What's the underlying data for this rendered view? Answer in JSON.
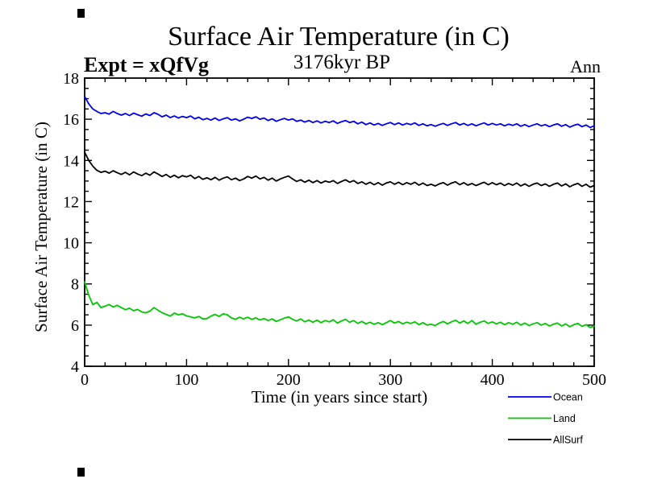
{
  "header": {
    "title": "Surface Air Temperature (in C)",
    "subtitle": "3176kyr BP",
    "experiment_label": "Expt = xQfVg",
    "period_label": "Ann"
  },
  "chart_data": {
    "type": "line",
    "title": "Surface Air Temperature (in C)",
    "subtitle": "3176kyr BP",
    "xlabel": "Time (in years since start)",
    "ylabel": "Surface Air Temperature (in C)",
    "xlim": [
      0,
      500
    ],
    "ylim": [
      4,
      18
    ],
    "grid": false,
    "legend_position": "below-right",
    "x_major_ticks": [
      0,
      100,
      200,
      300,
      400,
      500
    ],
    "x_tick_labels": [
      "0",
      "100",
      "200",
      "300",
      "400",
      "500"
    ],
    "x_minor_step": 20,
    "y_major_ticks": [
      4,
      6,
      8,
      10,
      12,
      14,
      16,
      18
    ],
    "y_tick_labels": [
      "4",
      "6",
      "8",
      "10",
      "12",
      "14",
      "16",
      "18"
    ],
    "y_minor_step": 0.5,
    "frame_color": "#000000",
    "x": {
      "start": 0,
      "step": 4
    },
    "series": [
      {
        "name": "Ocean",
        "color": "#0000ee",
        "values": [
          17.1,
          16.75,
          16.5,
          16.38,
          16.28,
          16.32,
          16.25,
          16.38,
          16.28,
          16.2,
          16.28,
          16.18,
          16.3,
          16.22,
          16.15,
          16.26,
          16.18,
          16.32,
          16.24,
          16.12,
          16.2,
          16.08,
          16.16,
          16.06,
          16.14,
          16.08,
          16.16,
          16.02,
          16.1,
          15.98,
          16.04,
          15.96,
          16.06,
          15.94,
          16.02,
          16.08,
          15.96,
          16.02,
          15.92,
          16.0,
          16.1,
          16.04,
          16.12,
          16.0,
          16.06,
          15.94,
          16.02,
          15.9,
          15.98,
          16.04,
          15.96,
          16.02,
          15.9,
          15.96,
          15.86,
          15.94,
          15.84,
          15.92,
          15.82,
          15.9,
          15.84,
          15.92,
          15.8,
          15.88,
          15.94,
          15.84,
          15.9,
          15.78,
          15.86,
          15.74,
          15.82,
          15.72,
          15.8,
          15.7,
          15.78,
          15.84,
          15.74,
          15.82,
          15.72,
          15.8,
          15.74,
          15.82,
          15.7,
          15.78,
          15.68,
          15.74,
          15.66,
          15.74,
          15.8,
          15.7,
          15.78,
          15.84,
          15.72,
          15.8,
          15.7,
          15.78,
          15.68,
          15.76,
          15.82,
          15.72,
          15.8,
          15.72,
          15.78,
          15.68,
          15.76,
          15.7,
          15.78,
          15.66,
          15.74,
          15.64,
          15.72,
          15.78,
          15.68,
          15.74,
          15.64,
          15.72,
          15.78,
          15.66,
          15.74,
          15.62,
          15.7,
          15.76,
          15.64,
          15.72,
          15.6,
          15.68
        ]
      },
      {
        "name": "Land",
        "color": "#00c800",
        "values": [
          8.1,
          7.45,
          7.0,
          7.1,
          6.85,
          6.92,
          7.0,
          6.88,
          6.96,
          6.85,
          6.75,
          6.82,
          6.7,
          6.76,
          6.64,
          6.6,
          6.68,
          6.85,
          6.72,
          6.6,
          6.52,
          6.44,
          6.58,
          6.5,
          6.55,
          6.45,
          6.4,
          6.35,
          6.42,
          6.3,
          6.32,
          6.44,
          6.52,
          6.42,
          6.55,
          6.5,
          6.35,
          6.28,
          6.38,
          6.3,
          6.38,
          6.28,
          6.35,
          6.25,
          6.32,
          6.22,
          6.3,
          6.18,
          6.26,
          6.34,
          6.4,
          6.28,
          6.2,
          6.3,
          6.16,
          6.25,
          6.14,
          6.24,
          6.12,
          6.22,
          6.16,
          6.26,
          6.1,
          6.2,
          6.28,
          6.14,
          6.22,
          6.08,
          6.18,
          6.06,
          6.14,
          6.04,
          6.12,
          6.02,
          6.12,
          6.22,
          6.1,
          6.18,
          6.06,
          6.14,
          6.08,
          6.16,
          6.02,
          6.12,
          6.0,
          6.04,
          5.98,
          6.1,
          6.18,
          6.06,
          6.16,
          6.24,
          6.1,
          6.2,
          6.08,
          6.22,
          6.04,
          6.14,
          6.2,
          6.08,
          6.16,
          6.06,
          6.14,
          6.02,
          6.12,
          6.04,
          6.14,
          6.0,
          6.1,
          5.98,
          6.06,
          6.12,
          6.0,
          6.08,
          5.96,
          6.04,
          6.1,
          5.96,
          6.06,
          5.92,
          6.02,
          6.08,
          5.94,
          6.02,
          5.88,
          5.95
        ]
      },
      {
        "name": "AllSurf",
        "color": "#000000",
        "values": [
          14.4,
          14.0,
          13.72,
          13.52,
          13.42,
          13.48,
          13.38,
          13.5,
          13.4,
          13.32,
          13.42,
          13.3,
          13.44,
          13.34,
          13.26,
          13.38,
          13.28,
          13.44,
          13.34,
          13.22,
          13.32,
          13.18,
          13.28,
          13.16,
          13.26,
          13.2,
          13.28,
          13.12,
          13.22,
          13.08,
          13.16,
          13.06,
          13.18,
          13.04,
          13.14,
          13.2,
          13.06,
          13.14,
          13.02,
          13.1,
          13.22,
          13.14,
          13.24,
          13.1,
          13.18,
          13.04,
          13.14,
          13.0,
          13.1,
          13.18,
          13.24,
          13.1,
          12.98,
          13.06,
          12.94,
          13.04,
          12.92,
          13.02,
          12.9,
          13.0,
          12.94,
          13.02,
          12.88,
          12.98,
          13.06,
          12.94,
          13.02,
          12.88,
          12.96,
          12.84,
          12.94,
          12.82,
          12.92,
          12.8,
          12.9,
          12.96,
          12.84,
          12.94,
          12.82,
          12.92,
          12.84,
          12.94,
          12.8,
          12.9,
          12.78,
          12.84,
          12.76,
          12.86,
          12.92,
          12.8,
          12.9,
          12.96,
          12.82,
          12.92,
          12.8,
          12.88,
          12.78,
          12.86,
          12.94,
          12.82,
          12.92,
          12.82,
          12.9,
          12.78,
          12.88,
          12.8,
          12.9,
          12.76,
          12.86,
          12.74,
          12.84,
          12.9,
          12.78,
          12.86,
          12.74,
          12.84,
          12.9,
          12.76,
          12.86,
          12.72,
          12.82,
          12.88,
          12.74,
          12.84,
          12.7,
          12.78
        ]
      }
    ]
  }
}
